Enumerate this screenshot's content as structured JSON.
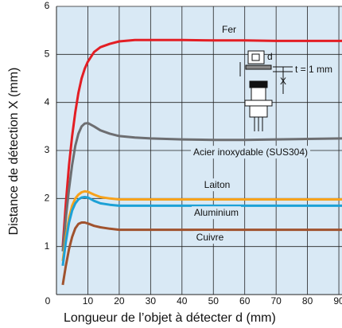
{
  "chart_data": {
    "type": "line",
    "xlabel": "Longueur de l’objet à détecter d (mm)",
    "ylabel": "Distance de détection X (mm)",
    "x": [
      2,
      3,
      4,
      5,
      6,
      7,
      8,
      9,
      10,
      12,
      14,
      17,
      20,
      25,
      30,
      40,
      50,
      60,
      70,
      80,
      91
    ],
    "series": [
      {
        "name": "Fer",
        "color": "#e31e24",
        "values": [
          1.0,
          1.9,
          2.7,
          3.3,
          3.8,
          4.2,
          4.5,
          4.7,
          4.85,
          5.05,
          5.15,
          5.22,
          5.27,
          5.3,
          5.3,
          5.3,
          5.29,
          5.29,
          5.28,
          5.28,
          5.28
        ]
      },
      {
        "name": "Acier inoxydable (SUS304)",
        "color": "#6d6e71",
        "values": [
          0.9,
          1.6,
          2.2,
          2.7,
          3.1,
          3.35,
          3.5,
          3.56,
          3.57,
          3.5,
          3.42,
          3.35,
          3.3,
          3.27,
          3.25,
          3.23,
          3.22,
          3.22,
          3.23,
          3.24,
          3.25
        ]
      },
      {
        "name": "Laiton",
        "color": "#f7a21b",
        "values": [
          0.7,
          1.2,
          1.6,
          1.85,
          2.0,
          2.08,
          2.13,
          2.15,
          2.14,
          2.08,
          2.03,
          2.0,
          1.98,
          1.98,
          1.98,
          1.98,
          1.98,
          1.98,
          1.98,
          1.98,
          1.98
        ]
      },
      {
        "name": "Aluminium",
        "color": "#1da1d6",
        "values": [
          0.6,
          1.1,
          1.5,
          1.75,
          1.9,
          1.98,
          2.02,
          2.03,
          2.02,
          1.95,
          1.9,
          1.87,
          1.85,
          1.85,
          1.85,
          1.85,
          1.85,
          1.85,
          1.85,
          1.85,
          1.85
        ]
      },
      {
        "name": "Cuivre",
        "color": "#a0522d",
        "values": [
          0.2,
          0.6,
          0.95,
          1.2,
          1.38,
          1.47,
          1.5,
          1.5,
          1.48,
          1.43,
          1.4,
          1.37,
          1.35,
          1.35,
          1.35,
          1.35,
          1.35,
          1.35,
          1.35,
          1.35,
          1.35
        ]
      }
    ],
    "xlim": [
      0,
      91
    ],
    "ylim": [
      0,
      6
    ],
    "xticks": [
      0,
      10,
      20,
      30,
      40,
      50,
      60,
      70,
      80,
      90
    ],
    "yticks": [
      1,
      2,
      3,
      4,
      5,
      6
    ],
    "grid": true,
    "annotations": [
      "d",
      "X",
      "t = 1 mm"
    ]
  }
}
